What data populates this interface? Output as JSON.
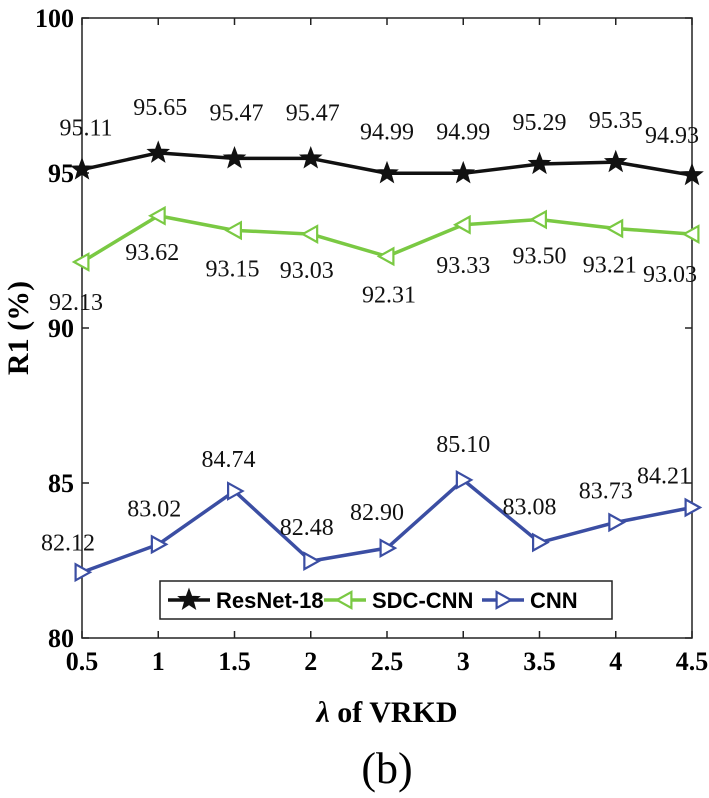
{
  "chart_data": {
    "type": "line",
    "xlabel_symbol": "λ",
    "xlabel_rest": " of VRKD",
    "ylabel": "R1 (%)",
    "xlim": [
      0.5,
      4.5
    ],
    "ylim": [
      80,
      100
    ],
    "xticks": [
      "0.5",
      "1",
      "1.5",
      "2",
      "2.5",
      "3",
      "3.5",
      "4",
      "4.5"
    ],
    "yticks": [
      "80",
      "85",
      "90",
      "95",
      "100"
    ],
    "x": [
      0.5,
      1,
      1.5,
      2,
      2.5,
      3,
      3.5,
      4,
      4.5
    ],
    "series": [
      {
        "name": "ResNet-18",
        "color": "#111111",
        "marker": "star",
        "values": [
          95.11,
          95.65,
          95.47,
          95.47,
          94.99,
          94.99,
          95.29,
          95.35,
          94.93
        ],
        "labels": [
          "95.11",
          "95.65",
          "95.47",
          "95.47",
          "94.99",
          "94.99",
          "95.29",
          "95.35",
          "94.93"
        ]
      },
      {
        "name": "SDC-CNN",
        "color": "#7ac943",
        "marker": "triangle-left",
        "values": [
          92.13,
          93.62,
          93.15,
          93.03,
          92.31,
          93.33,
          93.5,
          93.21,
          93.03
        ],
        "labels": [
          "92.13",
          "93.62",
          "93.15",
          "93.03",
          "92.31",
          "93.33",
          "93.50",
          "93.21",
          "93.03"
        ]
      },
      {
        "name": "CNN",
        "color": "#3b4ea3",
        "marker": "triangle-right",
        "values": [
          82.12,
          83.02,
          84.74,
          82.48,
          82.9,
          85.1,
          83.08,
          83.73,
          84.21
        ],
        "labels": [
          "82.12",
          "83.02",
          "84.74",
          "82.48",
          "82.90",
          "85.10",
          "83.08",
          "83.73",
          "84.21"
        ]
      }
    ],
    "grid": false,
    "legend_position": "bottom-center",
    "panel_label": "(b)"
  }
}
